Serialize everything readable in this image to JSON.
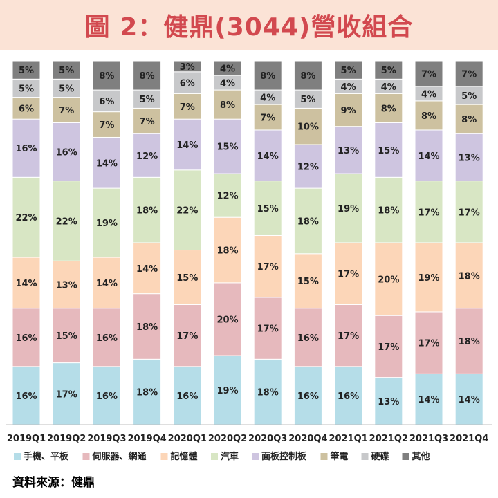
{
  "title": "圖 2：健鼎(3044)營收組合",
  "source": "資料來源：健鼎",
  "colors": {
    "title_bg": "#fbe3d6",
    "title_text": "#d2494f"
  },
  "chart_data": {
    "type": "bar",
    "stacked": true,
    "percent": true,
    "categories": [
      "2019Q1",
      "2019Q2",
      "2019Q3",
      "2019Q4",
      "2020Q1",
      "2020Q2",
      "2020Q3",
      "2020Q4",
      "2021Q1",
      "2021Q2",
      "2021Q3",
      "2021Q4"
    ],
    "series": [
      {
        "name": "手機、平板",
        "color": "#b5dde8",
        "values": [
          16,
          17,
          16,
          18,
          16,
          19,
          18,
          16,
          16,
          13,
          14,
          14
        ]
      },
      {
        "name": "伺服器、網通",
        "color": "#e6b9bd",
        "values": [
          16,
          15,
          16,
          18,
          17,
          20,
          17,
          16,
          17,
          17,
          17,
          18
        ]
      },
      {
        "name": "記憶體",
        "color": "#fcd6b8",
        "values": [
          14,
          13,
          14,
          14,
          15,
          18,
          17,
          15,
          17,
          20,
          19,
          18
        ]
      },
      {
        "name": "汽車",
        "color": "#d8e6c4",
        "values": [
          22,
          22,
          19,
          18,
          22,
          12,
          15,
          18,
          19,
          18,
          17,
          17
        ]
      },
      {
        "name": "面板控制板",
        "color": "#cec5e0",
        "values": [
          16,
          16,
          14,
          12,
          14,
          15,
          14,
          12,
          13,
          15,
          14,
          13
        ]
      },
      {
        "name": "筆電",
        "color": "#cdc1a0",
        "values": [
          6,
          7,
          7,
          7,
          7,
          8,
          7,
          10,
          9,
          8,
          8,
          8
        ]
      },
      {
        "name": "硬碟",
        "color": "#c7c8ca",
        "values": [
          5,
          5,
          6,
          5,
          6,
          4,
          4,
          5,
          4,
          4,
          4,
          5
        ]
      },
      {
        "name": "其他",
        "color": "#7f7f7f",
        "values": [
          5,
          5,
          8,
          8,
          3,
          4,
          8,
          8,
          5,
          5,
          7,
          7
        ]
      }
    ],
    "value_suffix": "%",
    "legend_position": "bottom",
    "grid": false
  }
}
